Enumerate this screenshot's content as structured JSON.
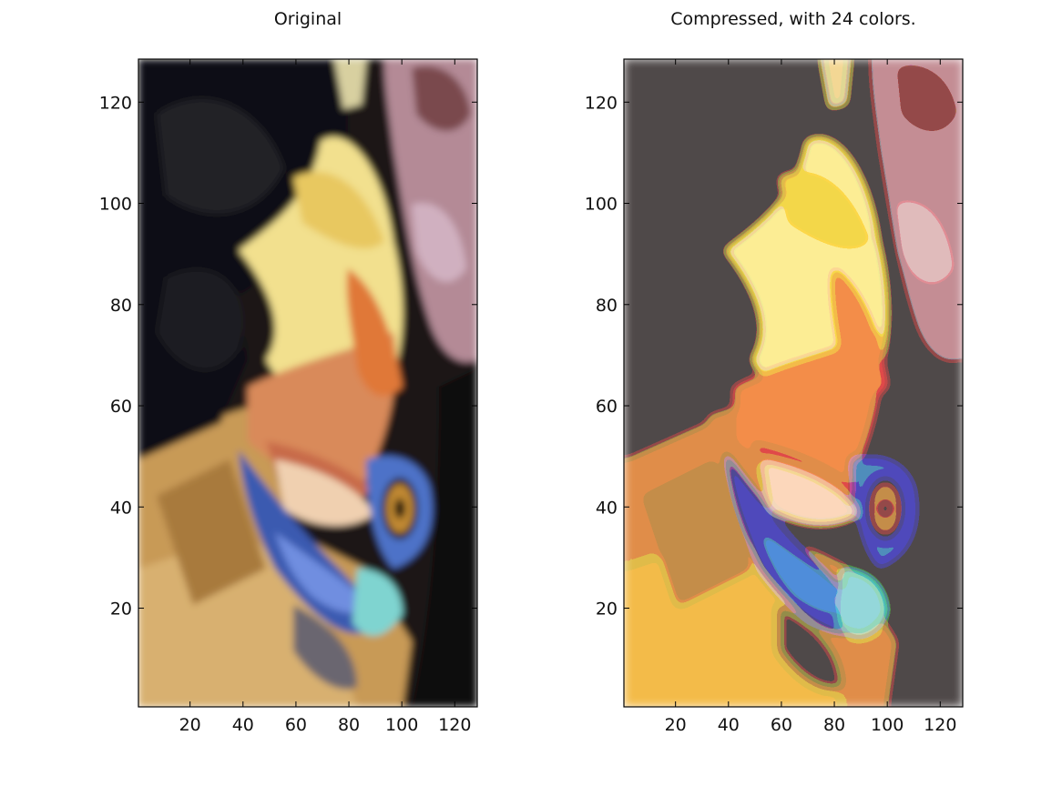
{
  "figure": {
    "panels": [
      {
        "title": "Original",
        "image": "hornbill-face-photo",
        "palette": "full-color"
      },
      {
        "title": "Compressed, with 24 colors.",
        "image": "hornbill-face-photo-quantized",
        "palette": "24-colors"
      }
    ],
    "x_ticks": [
      "20",
      "40",
      "60",
      "80",
      "100",
      "120"
    ],
    "y_ticks": [
      "20",
      "40",
      "60",
      "80",
      "100",
      "120"
    ],
    "x_range": [
      0.5,
      128.5
    ],
    "y_range": [
      0.5,
      128.5
    ]
  }
}
